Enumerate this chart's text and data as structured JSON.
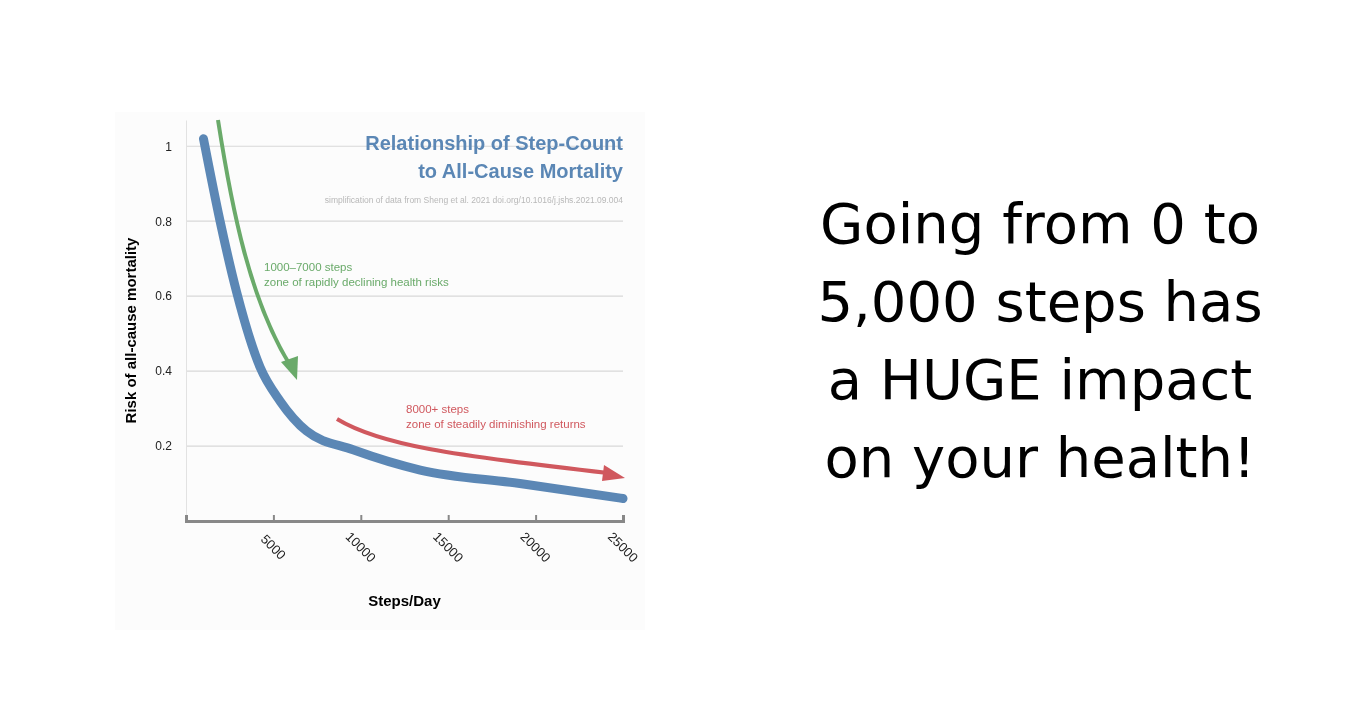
{
  "chart_data": {
    "type": "line",
    "title": "Relationship of Step-Count\nto All-Cause Mortality",
    "xlabel": "Steps/Day",
    "ylabel": "Risk of all-cause mortality",
    "x": [
      1000,
      1950,
      2900,
      4240,
      5380,
      6900,
      9560,
      13400,
      19100,
      25000
    ],
    "series": [
      {
        "color": "#5b87b5",
        "values": [
          1.02,
          0.8,
          0.61,
          0.41,
          0.32,
          0.24,
          0.19,
          0.136,
          0.1,
          0.06
        ]
      }
    ],
    "xlim": [
      0,
      25000
    ],
    "xticks": [
      5000,
      10000,
      15000,
      20000,
      25000
    ],
    "ylim": [
      0,
      1.07
    ],
    "yticks": [
      0.2,
      0.4,
      0.6,
      0.8,
      1
    ],
    "grid": "y",
    "marker": "none",
    "line_style": "solid",
    "annotations": [
      "simplification of data from Sheng et al. 2021 doi.org/10.1016/j.jshs.2021.09.004",
      "1000–7000 steps\nzone of rapidly declining health risks",
      "8000+ steps\nzone of steadily diminishing returns",
      "Going from 0 to\n5,000 steps has\na HUGE impact\non your health!"
    ]
  }
}
